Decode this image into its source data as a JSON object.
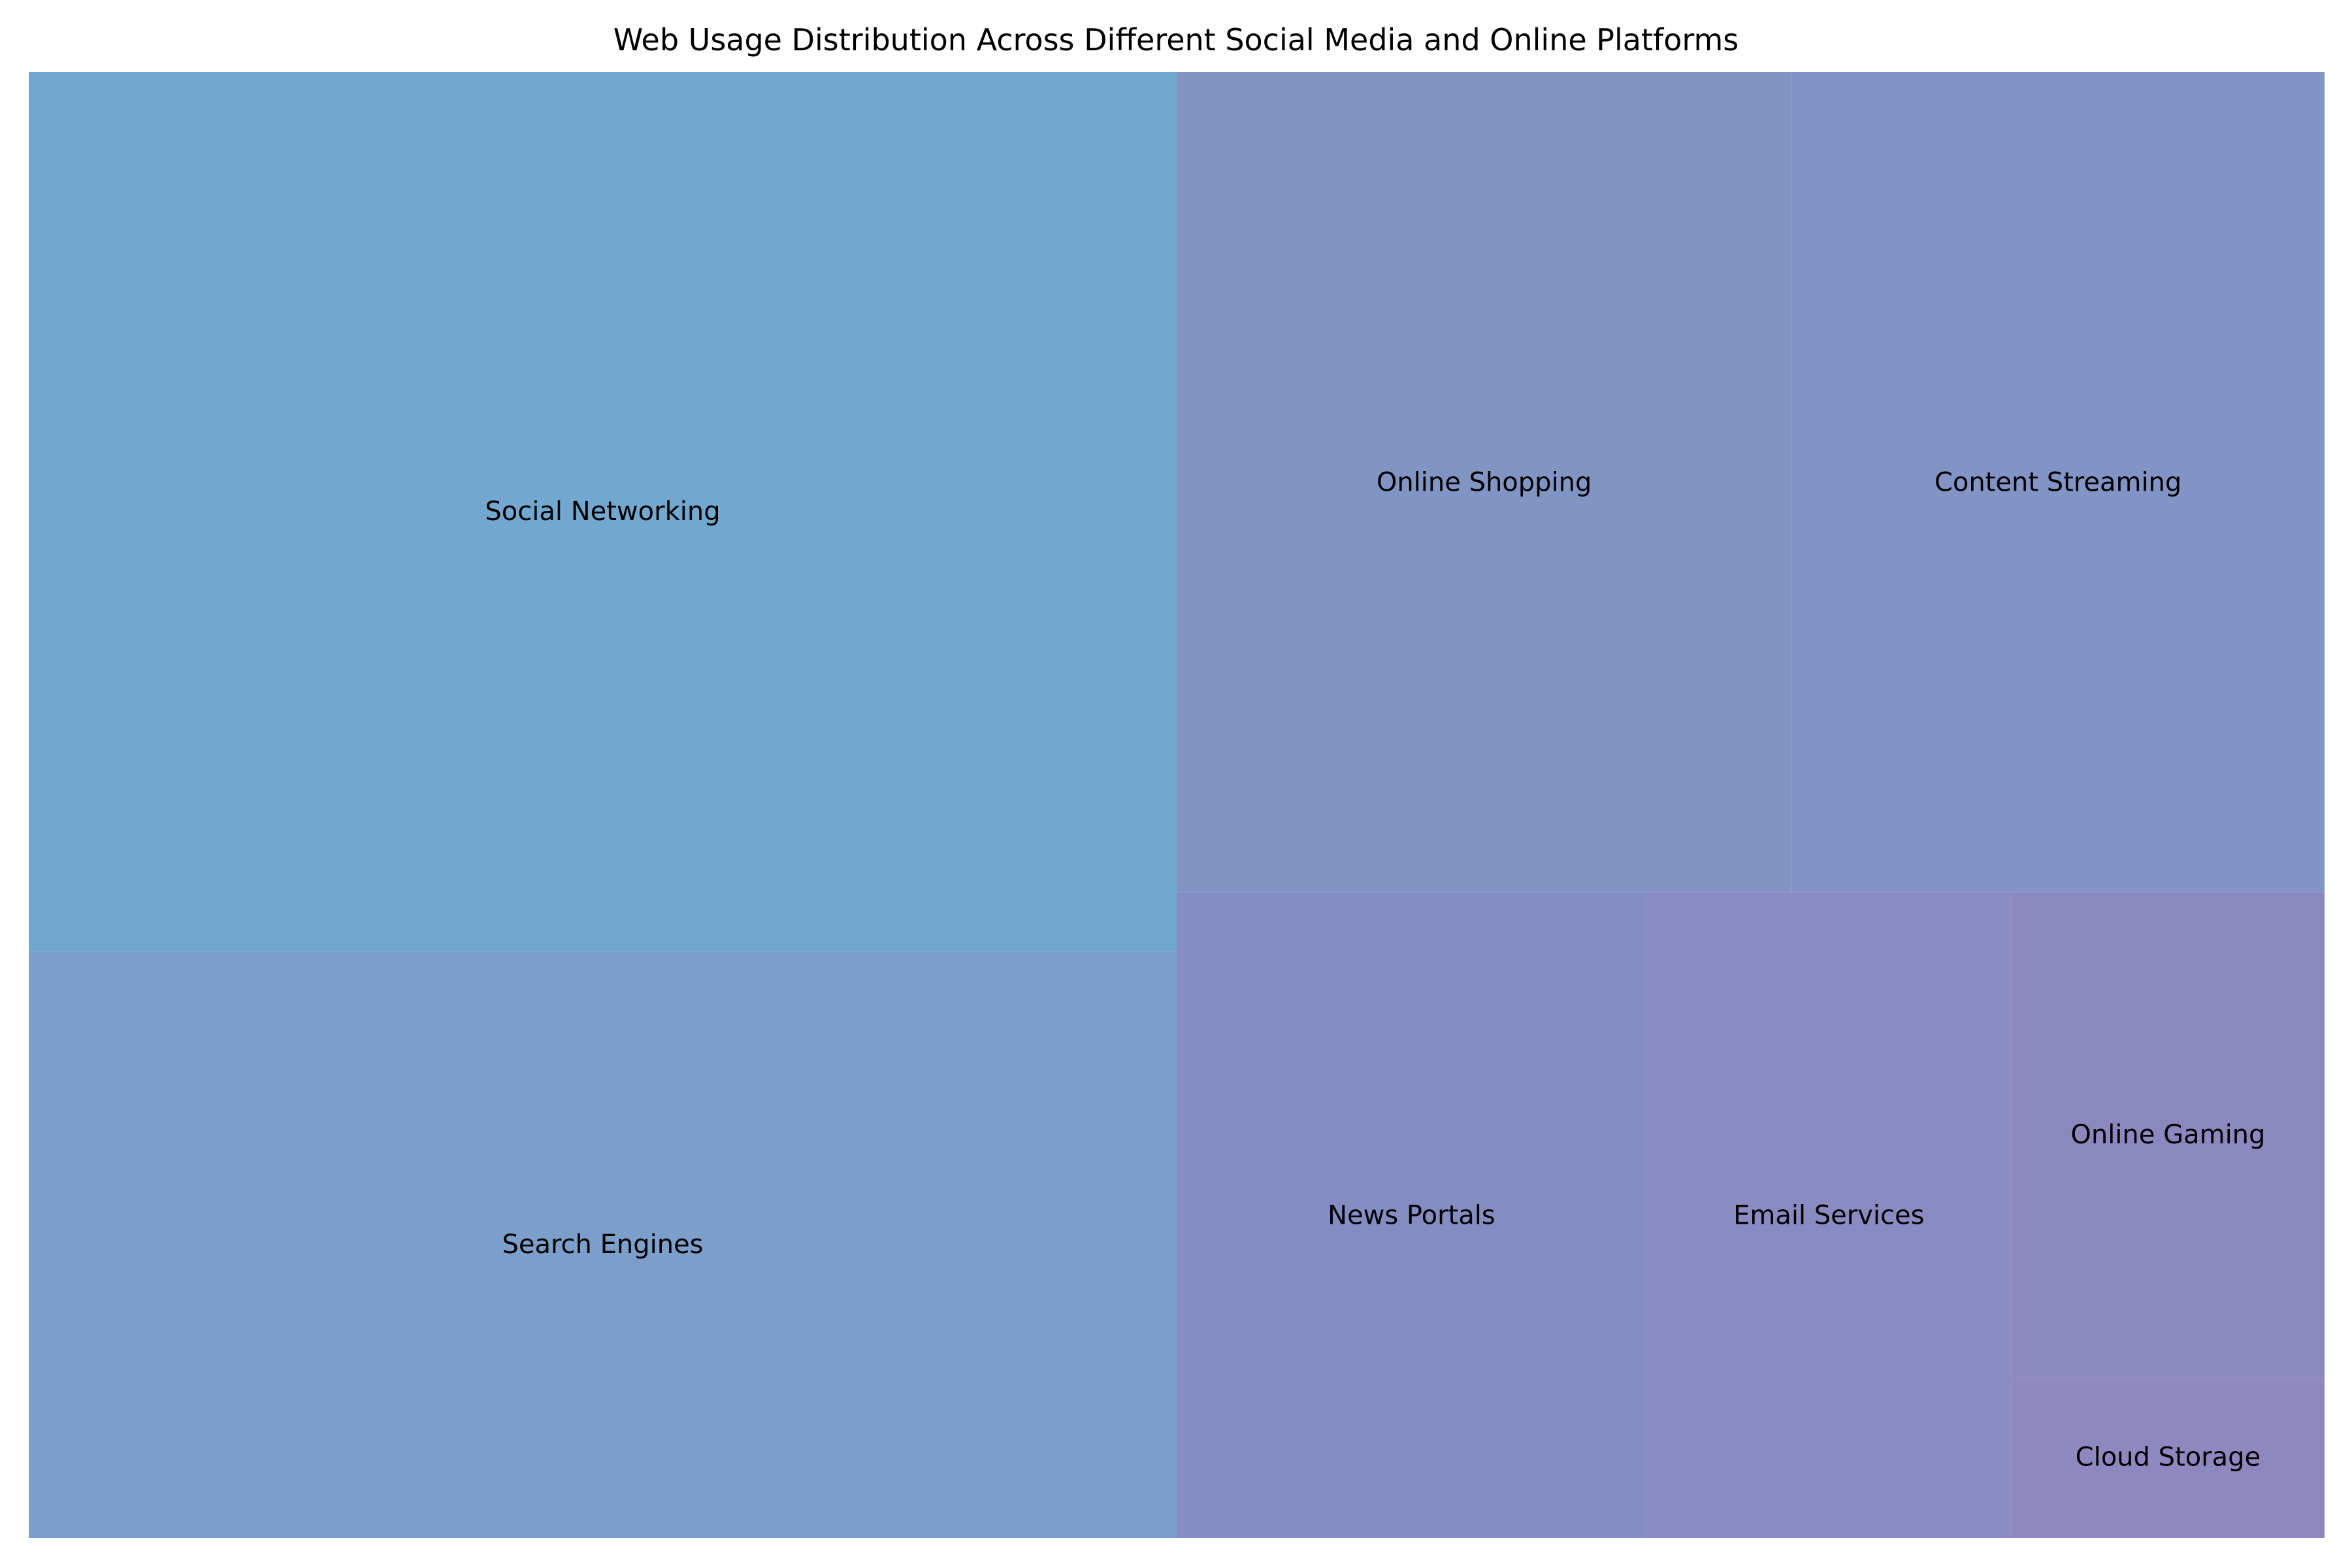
{
  "chart_data": {
    "type": "treemap",
    "title": "Web Usage Distribution Across Different Social Media and Online Platforms",
    "items": [
      {
        "label": "Social Networking",
        "value": 30,
        "color": "#72a8cf"
      },
      {
        "label": "Search Engines",
        "value": 20,
        "color": "#7b9fca"
      },
      {
        "label": "Online Shopping",
        "value": 15,
        "color": "#8195c5"
      },
      {
        "label": "Content Streaming",
        "value": 13,
        "color": "#8294c5"
      },
      {
        "label": "News Portals",
        "value": 9,
        "color": "#848dc2"
      },
      {
        "label": "Email Services",
        "value": 7,
        "color": "#898bc2"
      },
      {
        "label": "Online Gaming",
        "value": 4.5,
        "color": "#8b88c0"
      },
      {
        "label": "Cloud Storage",
        "value": 1.5,
        "color": "#8f88c0"
      }
    ]
  }
}
